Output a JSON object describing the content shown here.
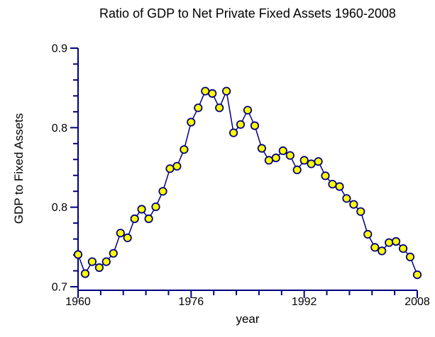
{
  "chart_data": {
    "type": "line",
    "title": "Ratio of GDP to Net Private Fixed Assets 1960-2008",
    "xlabel": "year",
    "ylabel": "GDP to Fixed Assets",
    "xlim": [
      1960,
      2008
    ],
    "ylim": [
      0.7,
      0.9
    ],
    "grid": false,
    "legend": "none",
    "x_tick_labels": [
      "1960",
      "1976",
      "1992",
      "2008"
    ],
    "x_major_tick_values": [
      1960,
      1976,
      1992,
      2008
    ],
    "y_tick_labels": [
      "0.9",
      "0.8",
      "0.8",
      "0.7"
    ],
    "y_major_tick_values": [
      0.9,
      0.8333,
      0.7667,
      0.7
    ],
    "minor_ticks_per_major": 5,
    "x": [
      1960,
      1961,
      1962,
      1963,
      1964,
      1965,
      1966,
      1967,
      1968,
      1969,
      1970,
      1971,
      1972,
      1973,
      1974,
      1975,
      1976,
      1977,
      1978,
      1979,
      1980,
      1981,
      1982,
      1983,
      1984,
      1985,
      1986,
      1987,
      1988,
      1989,
      1990,
      1991,
      1992,
      1993,
      1994,
      1995,
      1996,
      1997,
      1998,
      1999,
      2000,
      2001,
      2002,
      2003,
      2004,
      2005,
      2006,
      2007,
      2008
    ],
    "values": [
      0.727,
      0.711,
      0.721,
      0.716,
      0.721,
      0.728,
      0.745,
      0.741,
      0.757,
      0.765,
      0.757,
      0.767,
      0.78,
      0.799,
      0.801,
      0.815,
      0.838,
      0.85,
      0.864,
      0.862,
      0.85,
      0.864,
      0.829,
      0.836,
      0.848,
      0.835,
      0.816,
      0.806,
      0.808,
      0.814,
      0.81,
      0.798,
      0.806,
      0.803,
      0.805,
      0.793,
      0.786,
      0.784,
      0.774,
      0.769,
      0.763,
      0.744,
      0.733,
      0.73,
      0.737,
      0.738,
      0.732,
      0.725,
      0.71
    ],
    "colors": {
      "line": "#000080",
      "marker_fill": "#ffff00",
      "marker_stroke": "#000080",
      "axis": "#000080",
      "text": "#000000",
      "background": "#ffffff"
    }
  }
}
